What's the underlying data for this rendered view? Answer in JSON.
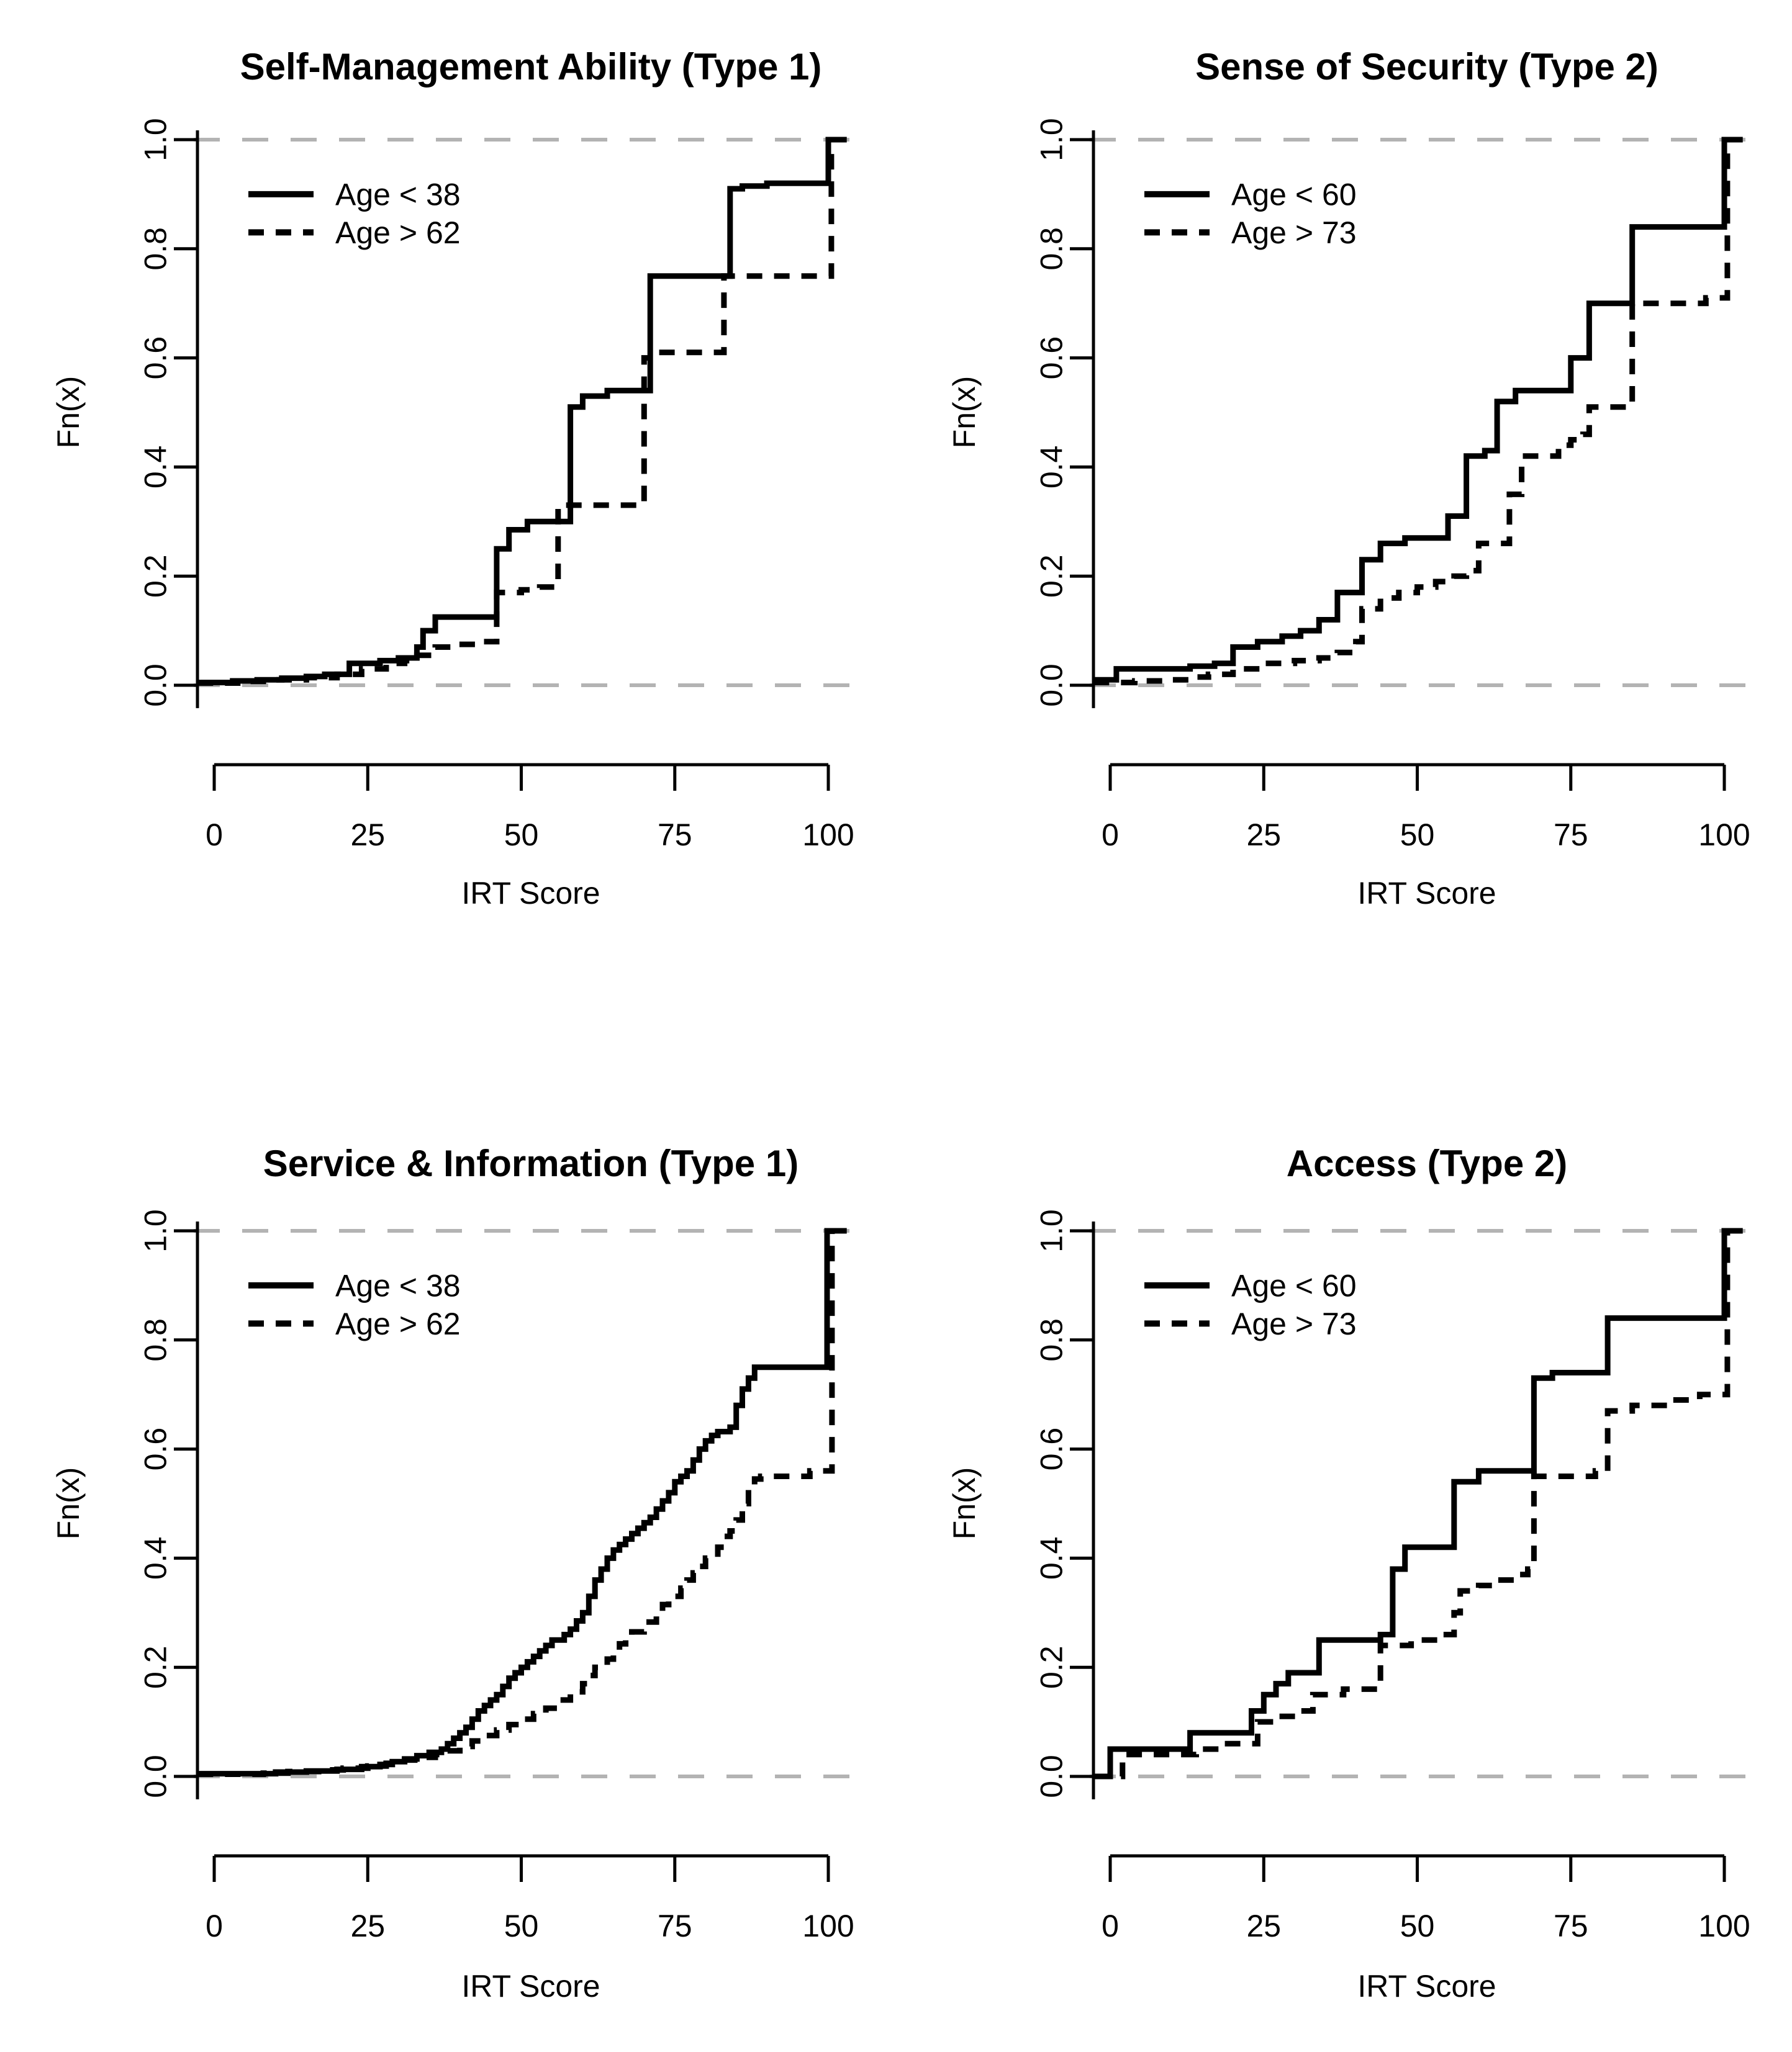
{
  "page": {
    "background": "#ffffff"
  },
  "styles": {
    "curve_color": "#000000",
    "ref_line_color": "#b3b3b3",
    "axis_color": "#000000"
  },
  "chart_data": [
    {
      "type": "line",
      "variant": "ecdf-step",
      "title": "Self-Management Ability (Type 1)",
      "xlabel": "IRT Score",
      "ylabel": "Fn(x)",
      "xlim": [
        -3,
        103
      ],
      "ylim": [
        0,
        1
      ],
      "xticks": [
        "0",
        "25",
        "50",
        "75",
        "100"
      ],
      "yticks": [
        "0.0",
        "0.2",
        "0.4",
        "0.6",
        "0.8",
        "1.0"
      ],
      "ref_lines_y": [
        0,
        1
      ],
      "grid": false,
      "legend_position": "top-left",
      "series": [
        {
          "name": "Age < 38",
          "style": "solid",
          "steps": [
            [
              -2.7,
              0.005
            ],
            [
              3,
              0.008
            ],
            [
              7,
              0.01
            ],
            [
              11,
              0.013
            ],
            [
              15,
              0.016
            ],
            [
              18,
              0.02
            ],
            [
              22,
              0.04
            ],
            [
              27,
              0.045
            ],
            [
              30,
              0.05
            ],
            [
              33,
              0.07
            ],
            [
              34,
              0.1
            ],
            [
              36,
              0.125
            ],
            [
              46,
              0.25
            ],
            [
              48,
              0.285
            ],
            [
              51,
              0.3
            ],
            [
              58,
              0.51
            ],
            [
              60,
              0.53
            ],
            [
              64,
              0.54
            ],
            [
              71,
              0.75
            ],
            [
              84,
              0.91
            ],
            [
              86,
              0.915
            ],
            [
              90,
              0.92
            ],
            [
              100,
              1
            ]
          ]
        },
        {
          "name": "Age > 62",
          "style": "dashed",
          "steps": [
            [
              -2.7,
              0.004
            ],
            [
              5,
              0.007
            ],
            [
              10,
              0.01
            ],
            [
              15,
              0.014
            ],
            [
              20,
              0.02
            ],
            [
              24,
              0.03
            ],
            [
              28,
              0.04
            ],
            [
              31,
              0.045
            ],
            [
              33,
              0.055
            ],
            [
              36,
              0.07
            ],
            [
              39,
              0.075
            ],
            [
              43,
              0.08
            ],
            [
              46,
              0.17
            ],
            [
              50,
              0.175
            ],
            [
              53,
              0.18
            ],
            [
              56,
              0.33
            ],
            [
              70,
              0.6
            ],
            [
              72,
              0.61
            ],
            [
              83,
              0.75
            ],
            [
              100.5,
              1
            ]
          ]
        }
      ]
    },
    {
      "type": "line",
      "variant": "ecdf-step",
      "title": "Sense of Security (Type 2)",
      "xlabel": "IRT Score",
      "ylabel": "Fn(x)",
      "xlim": [
        -3,
        103
      ],
      "ylim": [
        0,
        1
      ],
      "xticks": [
        "0",
        "25",
        "50",
        "75",
        "100"
      ],
      "yticks": [
        "0.0",
        "0.2",
        "0.4",
        "0.6",
        "0.8",
        "1.0"
      ],
      "ref_lines_y": [
        0,
        1
      ],
      "grid": false,
      "legend_position": "top-left",
      "series": [
        {
          "name": "Age < 60",
          "style": "solid",
          "steps": [
            [
              -2.7,
              0.01
            ],
            [
              1,
              0.03
            ],
            [
              13,
              0.035
            ],
            [
              17,
              0.04
            ],
            [
              20,
              0.07
            ],
            [
              24,
              0.08
            ],
            [
              28,
              0.09
            ],
            [
              31,
              0.1
            ],
            [
              34,
              0.12
            ],
            [
              37,
              0.17
            ],
            [
              41,
              0.23
            ],
            [
              44,
              0.26
            ],
            [
              48,
              0.27
            ],
            [
              55,
              0.31
            ],
            [
              58,
              0.42
            ],
            [
              61,
              0.43
            ],
            [
              63,
              0.52
            ],
            [
              66,
              0.54
            ],
            [
              75,
              0.6
            ],
            [
              78,
              0.7
            ],
            [
              85,
              0.84
            ],
            [
              100,
              1
            ]
          ]
        },
        {
          "name": "Age > 73",
          "style": "dashed",
          "steps": [
            [
              -2.7,
              0.005
            ],
            [
              4,
              0.008
            ],
            [
              9,
              0.01
            ],
            [
              13,
              0.015
            ],
            [
              16,
              0.02
            ],
            [
              20,
              0.03
            ],
            [
              25,
              0.04
            ],
            [
              30,
              0.045
            ],
            [
              34,
              0.05
            ],
            [
              37,
              0.06
            ],
            [
              40,
              0.08
            ],
            [
              41,
              0.14
            ],
            [
              44,
              0.16
            ],
            [
              47,
              0.17
            ],
            [
              50,
              0.18
            ],
            [
              53,
              0.19
            ],
            [
              56,
              0.2
            ],
            [
              58,
              0.21
            ],
            [
              60,
              0.26
            ],
            [
              65,
              0.35
            ],
            [
              67,
              0.42
            ],
            [
              73,
              0.44
            ],
            [
              75,
              0.45
            ],
            [
              77,
              0.46
            ],
            [
              78,
              0.51
            ],
            [
              85,
              0.7
            ],
            [
              97,
              0.71
            ],
            [
              100.5,
              1
            ]
          ]
        }
      ]
    },
    {
      "type": "line",
      "variant": "ecdf-step",
      "title": "Service & Information (Type 1)",
      "xlabel": "IRT Score",
      "ylabel": "Fn(x)",
      "xlim": [
        -3,
        103
      ],
      "ylim": [
        0,
        1
      ],
      "xticks": [
        "0",
        "25",
        "50",
        "75",
        "100"
      ],
      "yticks": [
        "0.0",
        "0.2",
        "0.4",
        "0.6",
        "0.8",
        "1.0"
      ],
      "ref_lines_y": [
        0,
        1
      ],
      "grid": false,
      "legend_position": "top-left",
      "series": [
        {
          "name": "Age < 38",
          "style": "solid",
          "steps": [
            [
              -2.7,
              0.005
            ],
            [
              10,
              0.008
            ],
            [
              15,
              0.01
            ],
            [
              20,
              0.013
            ],
            [
              24,
              0.018
            ],
            [
              27,
              0.022
            ],
            [
              29,
              0.027
            ],
            [
              31,
              0.032
            ],
            [
              33,
              0.038
            ],
            [
              35,
              0.044
            ],
            [
              37,
              0.05
            ],
            [
              38,
              0.06
            ],
            [
              39,
              0.07
            ],
            [
              40,
              0.08
            ],
            [
              41,
              0.09
            ],
            [
              42,
              0.105
            ],
            [
              43,
              0.12
            ],
            [
              44,
              0.13
            ],
            [
              45,
              0.14
            ],
            [
              46,
              0.15
            ],
            [
              47,
              0.165
            ],
            [
              48,
              0.18
            ],
            [
              49,
              0.19
            ],
            [
              50,
              0.2
            ],
            [
              51,
              0.21
            ],
            [
              52,
              0.22
            ],
            [
              53,
              0.23
            ],
            [
              54,
              0.24
            ],
            [
              55,
              0.25
            ],
            [
              57,
              0.26
            ],
            [
              58,
              0.27
            ],
            [
              59,
              0.285
            ],
            [
              60,
              0.3
            ],
            [
              61,
              0.33
            ],
            [
              62,
              0.36
            ],
            [
              63,
              0.38
            ],
            [
              64,
              0.4
            ],
            [
              65,
              0.415
            ],
            [
              66,
              0.425
            ],
            [
              67,
              0.435
            ],
            [
              68,
              0.445
            ],
            [
              69,
              0.455
            ],
            [
              70,
              0.465
            ],
            [
              71,
              0.475
            ],
            [
              72,
              0.49
            ],
            [
              73,
              0.505
            ],
            [
              74,
              0.52
            ],
            [
              75,
              0.54
            ],
            [
              76,
              0.55
            ],
            [
              77,
              0.56
            ],
            [
              78,
              0.58
            ],
            [
              79,
              0.6
            ],
            [
              80,
              0.615
            ],
            [
              81,
              0.625
            ],
            [
              82,
              0.632
            ],
            [
              84,
              0.64
            ],
            [
              85,
              0.68
            ],
            [
              86,
              0.71
            ],
            [
              87,
              0.73
            ],
            [
              88,
              0.75
            ],
            [
              99.8,
              1
            ]
          ]
        },
        {
          "name": "Age > 62",
          "style": "dashed",
          "steps": [
            [
              -2.7,
              0.004
            ],
            [
              8,
              0.006
            ],
            [
              12,
              0.009
            ],
            [
              17,
              0.012
            ],
            [
              21,
              0.015
            ],
            [
              25,
              0.019
            ],
            [
              28,
              0.024
            ],
            [
              31,
              0.03
            ],
            [
              34,
              0.035
            ],
            [
              36,
              0.04
            ],
            [
              38,
              0.047
            ],
            [
              40,
              0.055
            ],
            [
              42,
              0.065
            ],
            [
              44,
              0.075
            ],
            [
              46,
              0.085
            ],
            [
              48,
              0.095
            ],
            [
              50,
              0.105
            ],
            [
              52,
              0.115
            ],
            [
              54,
              0.125
            ],
            [
              56,
              0.14
            ],
            [
              58,
              0.155
            ],
            [
              60,
              0.17
            ],
            [
              61,
              0.185
            ],
            [
              62,
              0.2
            ],
            [
              64,
              0.215
            ],
            [
              65,
              0.23
            ],
            [
              66,
              0.243
            ],
            [
              67,
              0.255
            ],
            [
              68,
              0.265
            ],
            [
              70,
              0.283
            ],
            [
              72,
              0.3
            ],
            [
              73,
              0.315
            ],
            [
              74,
              0.33
            ],
            [
              76,
              0.345
            ],
            [
              77,
              0.36
            ],
            [
              78,
              0.373
            ],
            [
              79,
              0.385
            ],
            [
              80,
              0.4
            ],
            [
              82,
              0.42
            ],
            [
              83,
              0.44
            ],
            [
              84,
              0.45
            ],
            [
              85,
              0.47
            ],
            [
              86,
              0.5
            ],
            [
              87,
              0.53
            ],
            [
              88,
              0.545
            ],
            [
              89,
              0.55
            ],
            [
              97,
              0.56
            ],
            [
              100.6,
              1
            ]
          ]
        }
      ]
    },
    {
      "type": "line",
      "variant": "ecdf-step",
      "title": "Access (Type 2)",
      "xlabel": "IRT Score",
      "ylabel": "Fn(x)",
      "xlim": [
        -3,
        103
      ],
      "ylim": [
        0,
        1
      ],
      "xticks": [
        "0",
        "25",
        "50",
        "75",
        "100"
      ],
      "yticks": [
        "0.0",
        "0.2",
        "0.4",
        "0.6",
        "0.8",
        "1.0"
      ],
      "ref_lines_y": [
        0,
        1
      ],
      "grid": false,
      "legend_position": "top-left",
      "series": [
        {
          "name": "Age < 60",
          "style": "solid",
          "steps": [
            [
              -2.7,
              0
            ],
            [
              0,
              0.05
            ],
            [
              13,
              0.08
            ],
            [
              23,
              0.12
            ],
            [
              25,
              0.15
            ],
            [
              27,
              0.17
            ],
            [
              29,
              0.19
            ],
            [
              34,
              0.25
            ],
            [
              44,
              0.26
            ],
            [
              46,
              0.38
            ],
            [
              48,
              0.42
            ],
            [
              56,
              0.54
            ],
            [
              60,
              0.56
            ],
            [
              69,
              0.73
            ],
            [
              72,
              0.74
            ],
            [
              81,
              0.84
            ],
            [
              100,
              1
            ]
          ]
        },
        {
          "name": "Age > 73",
          "style": "dashed",
          "steps": [
            [
              -2.7,
              0
            ],
            [
              2,
              0.04
            ],
            [
              14,
              0.05
            ],
            [
              18,
              0.06
            ],
            [
              24,
              0.1
            ],
            [
              27,
              0.11
            ],
            [
              31,
              0.12
            ],
            [
              33,
              0.15
            ],
            [
              38,
              0.16
            ],
            [
              44,
              0.24
            ],
            [
              49,
              0.25
            ],
            [
              54,
              0.26
            ],
            [
              56,
              0.3
            ],
            [
              57,
              0.34
            ],
            [
              60,
              0.35
            ],
            [
              63,
              0.36
            ],
            [
              66,
              0.37
            ],
            [
              68,
              0.38
            ],
            [
              69,
              0.55
            ],
            [
              79,
              0.56
            ],
            [
              81,
              0.67
            ],
            [
              85,
              0.68
            ],
            [
              91,
              0.69
            ],
            [
              96,
              0.7
            ],
            [
              100.5,
              1
            ]
          ]
        }
      ]
    }
  ]
}
